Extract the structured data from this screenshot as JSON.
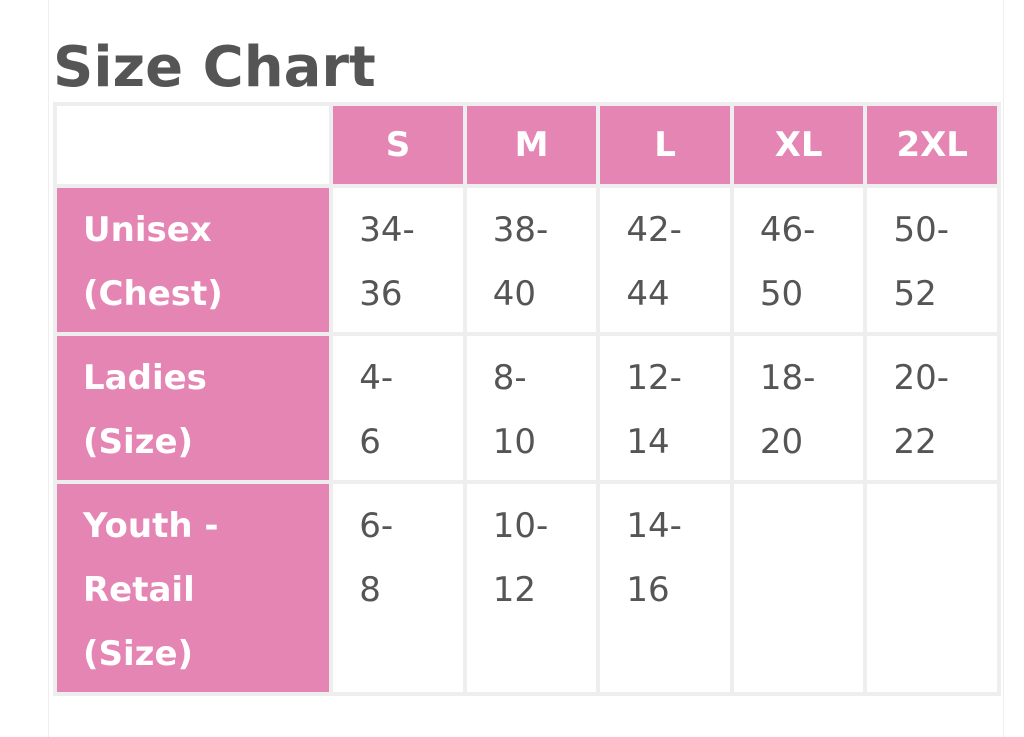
{
  "title": "Size Chart",
  "colors": {
    "header_bg": "#e585b3",
    "header_text": "#ffffff",
    "title_text": "#555555",
    "cell_text": "#555555",
    "grid_lines": "#eeeeee"
  },
  "table": {
    "columns": [
      "S",
      "M",
      "L",
      "XL",
      "2XL"
    ],
    "rows": [
      {
        "label": " Unisex\n(Chest)",
        "cells": [
          " 34-\n36",
          " 38-\n40",
          " 42-\n44",
          " 46-\n50",
          " 50-\n52"
        ]
      },
      {
        "label": " Ladies\n(Size)",
        "cells": [
          " 4-\n6",
          " 8-\n10",
          " 12-\n14",
          " 18-\n20",
          " 20-\n22"
        ]
      },
      {
        "label": " Youth -\nRetail\n(Size)",
        "cells": [
          " 6-\n8",
          " 10-\n12",
          " 14-\n16",
          "",
          ""
        ]
      }
    ]
  }
}
